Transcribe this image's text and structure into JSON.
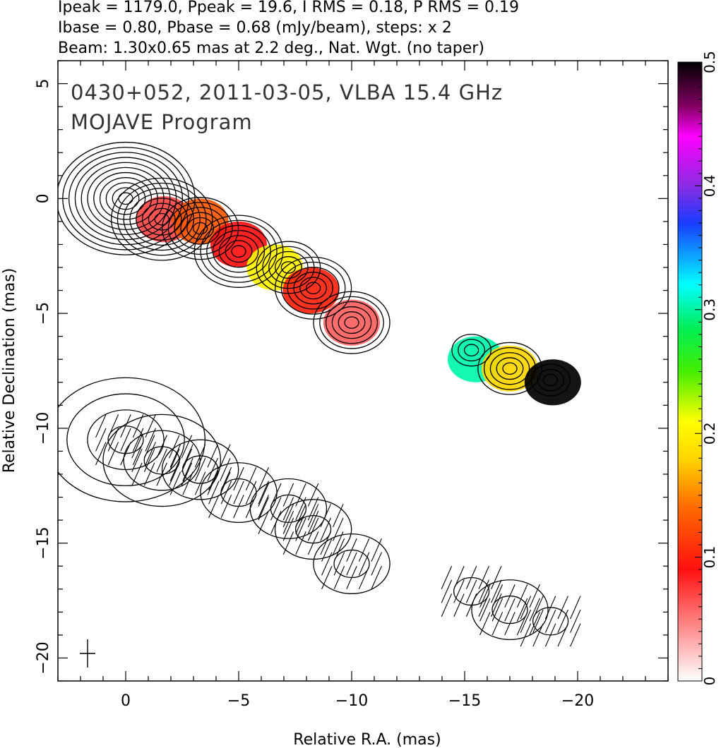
{
  "header": {
    "line1": "Ipeak = 1179.0, Ppeak = 19.6, I RMS = 0.18, P RMS = 0.19",
    "line2": "Ibase = 0.80, Pbase = 0.68 (mJy/beam), steps: x 2",
    "line3": "Beam: 1.30x0.65 mas at 2.2 deg., Nat. Wgt. (no taper)"
  },
  "annotations": {
    "source_line": "0430+052, 2011-03-05, VLBA 15.4 GHz",
    "program_line": "MOJAVE Program"
  },
  "chart_data": {
    "type": "heatmap",
    "xlabel": "Relative R.A. (mas)",
    "ylabel": "Relative Declination (mas)",
    "xlim": [
      3,
      -24
    ],
    "ylim": [
      -21,
      6
    ],
    "x_ticks": [
      0,
      -5,
      -10,
      -15,
      -20
    ],
    "x_tick_labels": [
      "0",
      "−5",
      "−10",
      "−15",
      "−20"
    ],
    "y_ticks": [
      5,
      0,
      -5,
      -10,
      -15,
      -20
    ],
    "y_tick_labels": [
      "5",
      "0",
      "−5",
      "−10",
      "−15",
      "−20"
    ],
    "colorbar": {
      "min": 0,
      "max": 0.5,
      "ticks": [
        0,
        0.1,
        0.2,
        0.3,
        0.4,
        0.5
      ],
      "tick_labels": [
        "0",
        "0.1",
        "0.2",
        "0.3",
        "0.4",
        "0.5"
      ],
      "colormap_stops": [
        "#ffffff",
        "#ff0000",
        "#ff8000",
        "#ffff00",
        "#00ee00",
        "#00ffff",
        "#0000ff",
        "#ff00ff",
        "#000000"
      ]
    },
    "stokes_i_peak_mJy_per_beam": 1179.0,
    "polarized_peak_mJy_per_beam": 19.6,
    "i_rms": 0.18,
    "p_rms": 0.19,
    "i_base": 0.8,
    "p_base": 0.68,
    "contour_step_factor": 2,
    "beam": {
      "major_mas": 1.3,
      "minor_mas": 0.65,
      "pa_deg": 2.2
    },
    "upper_panel_offset_mas": 0,
    "lower_panel_offset_mas": -10.5,
    "total_intensity_components": [
      {
        "x": 0.0,
        "y": 0.0,
        "levels": 11
      },
      {
        "x": -1.6,
        "y": -0.9,
        "levels": 8
      },
      {
        "x": -3.3,
        "y": -1.3,
        "levels": 6
      },
      {
        "x": -5.0,
        "y": -2.3,
        "levels": 7
      },
      {
        "x": -7.2,
        "y": -3.0,
        "levels": 5
      },
      {
        "x": -8.3,
        "y": -3.9,
        "levels": 6
      },
      {
        "x": -10.0,
        "y": -5.4,
        "levels": 6
      },
      {
        "x": -15.3,
        "y": -6.6,
        "levels": 3
      },
      {
        "x": -17.0,
        "y": -7.4,
        "levels": 5
      },
      {
        "x": -18.8,
        "y": -7.9,
        "levels": 3
      }
    ],
    "fractional_polarization_regions": [
      {
        "x": -1.7,
        "y": -0.9,
        "value": 0.07
      },
      {
        "x": -3.3,
        "y": -1.0,
        "value": 0.13
      },
      {
        "x": -5.0,
        "y": -2.0,
        "value": 0.09
      },
      {
        "x": -6.6,
        "y": -3.0,
        "value": 0.2
      },
      {
        "x": -8.2,
        "y": -4.0,
        "value": 0.1
      },
      {
        "x": -10.0,
        "y": -5.4,
        "value": 0.06
      },
      {
        "x": -15.5,
        "y": -7.0,
        "value": 0.3
      },
      {
        "x": -17.0,
        "y": -7.4,
        "value": 0.18
      },
      {
        "x": -18.9,
        "y": -8.0,
        "value": 0.5
      }
    ]
  }
}
